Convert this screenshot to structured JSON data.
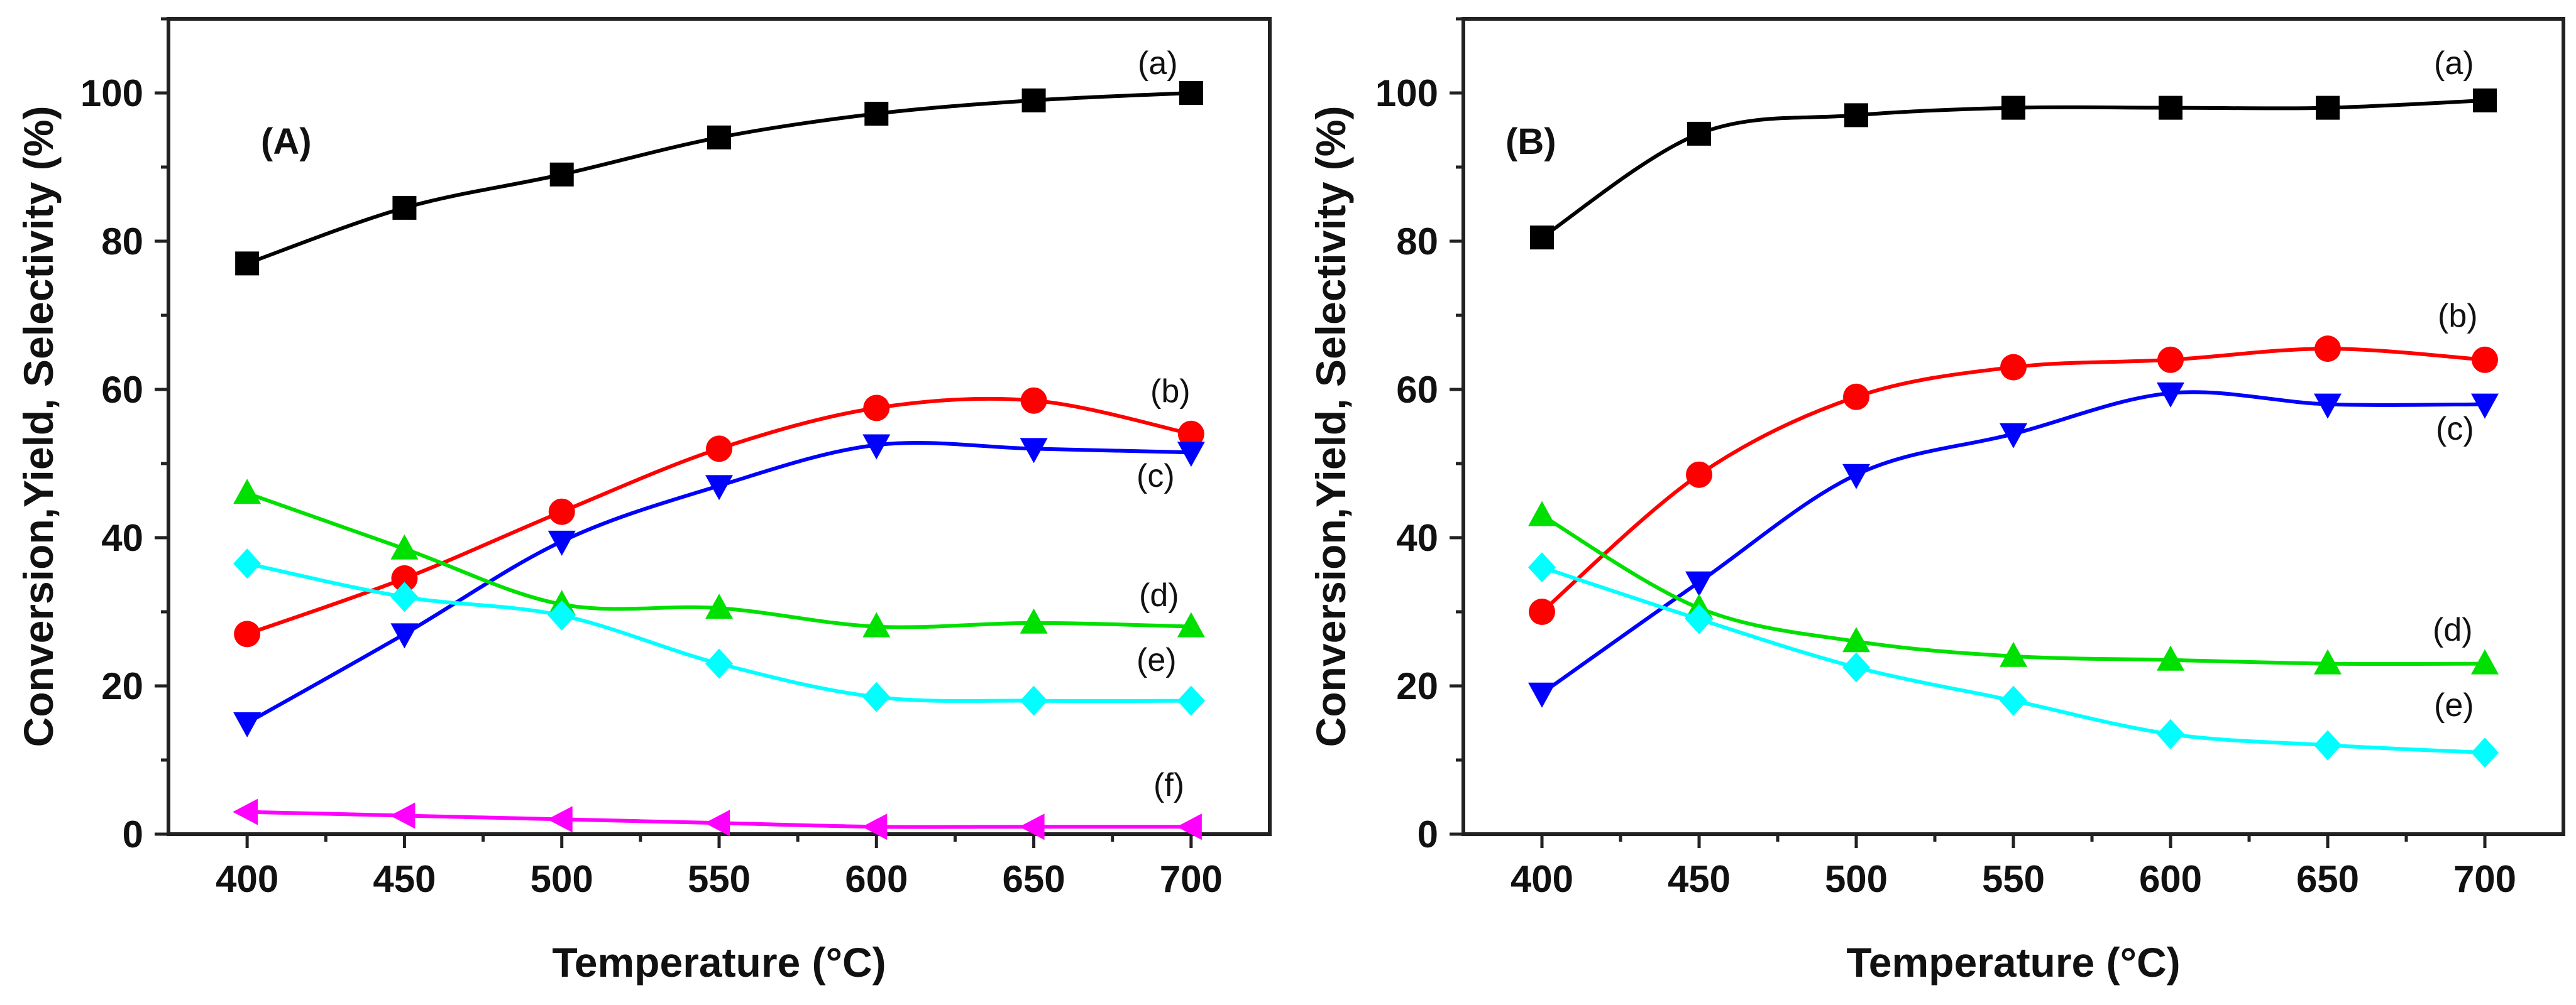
{
  "chart_data": [
    {
      "type": "line",
      "panel_label": "(A)",
      "xlabel": "Temperature (°C)",
      "ylabel": "Conversion,Yield, Selectivity (%)",
      "x": [
        400,
        450,
        500,
        550,
        600,
        650,
        700
      ],
      "xlim": [
        375,
        725
      ],
      "ylim": [
        0,
        110
      ],
      "xticks": [
        400,
        450,
        500,
        550,
        600,
        650,
        700
      ],
      "yticks": [
        0,
        20,
        40,
        60,
        80,
        100
      ],
      "grid": false,
      "series": [
        {
          "name": "(a)",
          "color": "#000000",
          "marker": "square",
          "values": [
            77,
            84.5,
            89,
            94,
            97.2,
            99,
            100
          ]
        },
        {
          "name": "(b)",
          "color": "#ff0000",
          "marker": "circle",
          "values": [
            27,
            34.5,
            43.5,
            52,
            57.5,
            58.5,
            54
          ]
        },
        {
          "name": "(c)",
          "color": "#0000ff",
          "marker": "triangle-down",
          "values": [
            15,
            27,
            39.5,
            47,
            52.5,
            52,
            51.5
          ]
        },
        {
          "name": "(d)",
          "color": "#00e000",
          "marker": "triangle-up",
          "values": [
            46,
            38.5,
            31,
            30.5,
            28,
            28.5,
            28
          ]
        },
        {
          "name": "(e)",
          "color": "#00ffff",
          "marker": "diamond",
          "values": [
            36.5,
            32,
            29.5,
            23,
            18.5,
            18,
            18
          ]
        },
        {
          "name": "(f)",
          "color": "#ff00ff",
          "marker": "triangle-left",
          "values": [
            3,
            2.5,
            2,
            1.5,
            1,
            1,
            1
          ]
        }
      ]
    },
    {
      "type": "line",
      "panel_label": "(B)",
      "xlabel": "Temperature (°C)",
      "ylabel": "Conversion,Yield, Selectivity (%)",
      "x": [
        400,
        450,
        500,
        550,
        600,
        650,
        700
      ],
      "xlim": [
        375,
        725
      ],
      "ylim": [
        0,
        110
      ],
      "xticks": [
        400,
        450,
        500,
        550,
        600,
        650,
        700
      ],
      "yticks": [
        0,
        20,
        40,
        60,
        80,
        100
      ],
      "grid": false,
      "series": [
        {
          "name": "(a)",
          "color": "#000000",
          "marker": "square",
          "values": [
            80.5,
            94.5,
            97,
            98,
            98,
            98,
            99
          ]
        },
        {
          "name": "(b)",
          "color": "#ff0000",
          "marker": "circle",
          "values": [
            30,
            48.5,
            59,
            63,
            64,
            65.5,
            64
          ]
        },
        {
          "name": "(c)",
          "color": "#0000ff",
          "marker": "triangle-down",
          "values": [
            19,
            34,
            48.5,
            54,
            59.5,
            58,
            58
          ]
        },
        {
          "name": "(d)",
          "color": "#00e000",
          "marker": "triangle-up",
          "values": [
            43,
            30.5,
            26,
            24,
            23.5,
            23,
            23
          ]
        },
        {
          "name": "(e)",
          "color": "#00ffff",
          "marker": "diamond",
          "values": [
            36,
            29,
            22.5,
            18,
            13.5,
            12,
            11
          ]
        }
      ]
    }
  ]
}
